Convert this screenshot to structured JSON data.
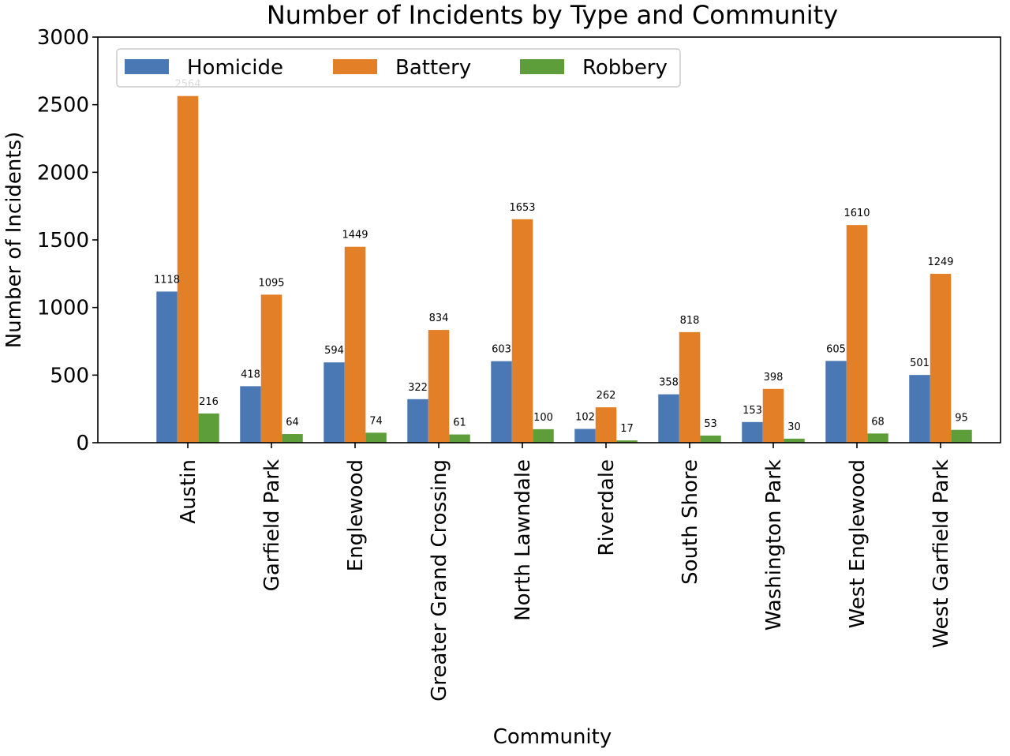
{
  "chart_data": {
    "type": "bar",
    "title": "Number of Incidents by Type and Community",
    "xlabel": "Community",
    "ylabel": "Number of Incidents)",
    "ylim": [
      0,
      3000
    ],
    "yticks": [
      0,
      500,
      1000,
      1500,
      2000,
      2500,
      3000
    ],
    "grid": false,
    "legend_position": "top-left",
    "categories": [
      "Austin",
      "Garfield Park",
      "Englewood",
      "Greater Grand Crossing",
      "North Lawndale",
      "Riverdale",
      "South Shore",
      "Washington Park",
      "West Englewood",
      "West Garfield Park"
    ],
    "series": [
      {
        "name": "Homicide",
        "color": "#4a78b4",
        "values": [
          1118,
          418,
          594,
          322,
          603,
          102,
          358,
          153,
          605,
          501
        ]
      },
      {
        "name": "Battery",
        "color": "#e37f26",
        "values": [
          2564,
          1095,
          1449,
          834,
          1653,
          262,
          818,
          398,
          1610,
          1249
        ]
      },
      {
        "name": "Robbery",
        "color": "#5d9e3a",
        "values": [
          216,
          64,
          74,
          61,
          100,
          17,
          53,
          30,
          68,
          95
        ]
      }
    ]
  }
}
